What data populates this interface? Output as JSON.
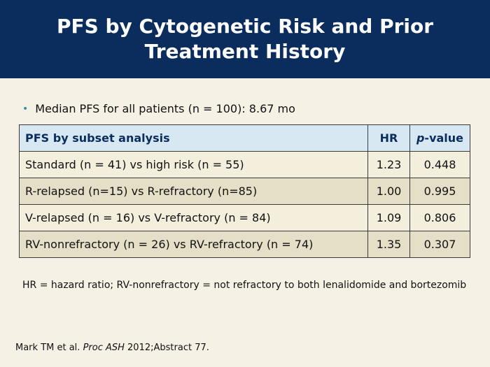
{
  "title": {
    "line1": "PFS by Cytogenetic Risk and Prior",
    "line2": "Treatment History"
  },
  "bullet": {
    "text": "Median PFS for all patients (n = 100): 8.67 mo"
  },
  "table": {
    "header": {
      "subset": "PFS by subset analysis",
      "hr": "HR",
      "p_prefix": "p",
      "p_suffix": "-value"
    },
    "rows": [
      {
        "subset": "Standard (n = 41) vs high risk (n = 55)",
        "hr": "1.23",
        "p": "0.448"
      },
      {
        "subset": "R-relapsed (n=15) vs R-refractory (n=85)",
        "hr": "1.00",
        "p": "0.995"
      },
      {
        "subset": "V-relapsed (n = 16) vs V-refractory (n = 84)",
        "hr": "1.09",
        "p": "0.806"
      },
      {
        "subset": "RV-nonrefractory (n = 26) vs RV-refractory (n = 74)",
        "hr": "1.35",
        "p": "0.307"
      }
    ]
  },
  "footnote": "HR = hazard ratio; RV-nonrefractory = not refractory to both lenalidomide and bortezomib",
  "citation": {
    "authors": "Mark TM et al. ",
    "journal": "Proc ASH",
    "rest": " 2012;Abstract 77."
  },
  "colors": {
    "title_bar": "#0a2d5e",
    "background": "#f5f1e4",
    "header_fill": "#d7e8f3",
    "bullet": "#3a8fa8"
  }
}
